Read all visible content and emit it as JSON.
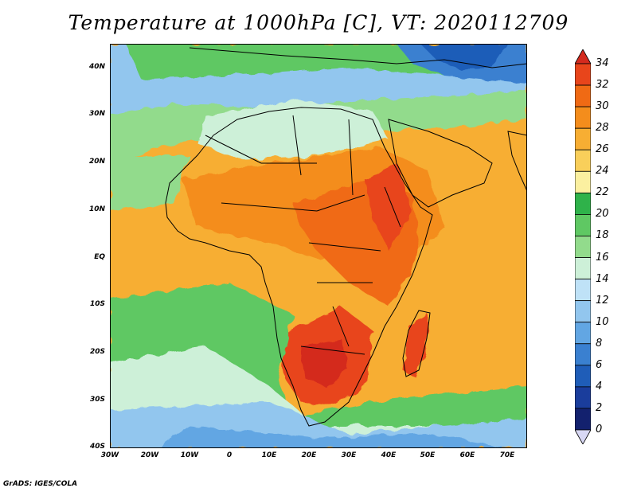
{
  "title": "Temperature at 1000hPa [C], VT: 2020112709",
  "credit": "GrADS: IGES/COLA",
  "map": {
    "lat_labels": [
      "40N",
      "30N",
      "20N",
      "10N",
      "EQ",
      "10S",
      "20S",
      "30S",
      "40S"
    ],
    "lon_labels": [
      "30W",
      "20W",
      "10W",
      "0",
      "10E",
      "20E",
      "30E",
      "40E",
      "50E",
      "60E",
      "70E"
    ],
    "lat_range": [
      -40,
      45
    ],
    "lon_range": [
      -30,
      75
    ]
  },
  "colorbar": {
    "labels": [
      "34",
      "32",
      "30",
      "28",
      "26",
      "24",
      "22",
      "20",
      "18",
      "16",
      "14",
      "12",
      "10",
      "8",
      "6",
      "4",
      "2",
      "0"
    ],
    "colors": [
      "#d42a1e",
      "#e8451b",
      "#f06a14",
      "#f48d1c",
      "#f7ae33",
      "#f9cf5a",
      "#fbf0a0",
      "#2fb24a",
      "#5fc863",
      "#92db8c",
      "#cdf0d8",
      "#bfe2f7",
      "#92c6ee",
      "#62a6e3",
      "#3a80d0",
      "#1f5db8",
      "#1a3d9c",
      "#13216e",
      "#d8d8f4"
    ]
  }
}
